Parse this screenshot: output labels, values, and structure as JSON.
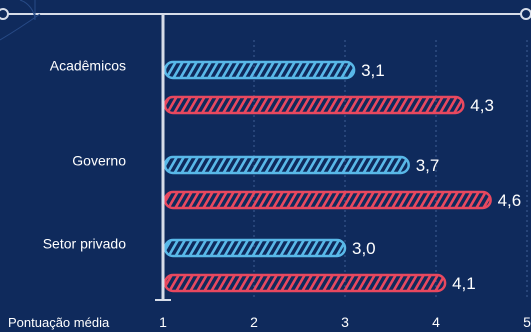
{
  "colors": {
    "background": "#0f2a5c",
    "axis": "#d7dde9",
    "grid": "#3f5e93",
    "series_1": "#59b8e8",
    "series_2": "#e8485f",
    "text": "#ffffff"
  },
  "chart_data": {
    "type": "bar",
    "orientation": "horizontal",
    "categories": [
      "Acadêmicos",
      "Governo",
      "Setor privado"
    ],
    "series": [
      {
        "values": [
          3.1,
          3.7,
          3.0
        ]
      },
      {
        "values": [
          4.3,
          4.6,
          4.1
        ]
      }
    ],
    "value_labels": [
      [
        "3,1",
        "3,7",
        "3,0"
      ],
      [
        "4,3",
        "4,6",
        "4,1"
      ]
    ],
    "xlabel": "Pontuação média",
    "xlim": [
      1,
      5
    ],
    "xticks": [
      1,
      2,
      3,
      4,
      5
    ],
    "xtick_labels": [
      "1",
      "2",
      "3",
      "4",
      "5"
    ],
    "grid": true
  }
}
